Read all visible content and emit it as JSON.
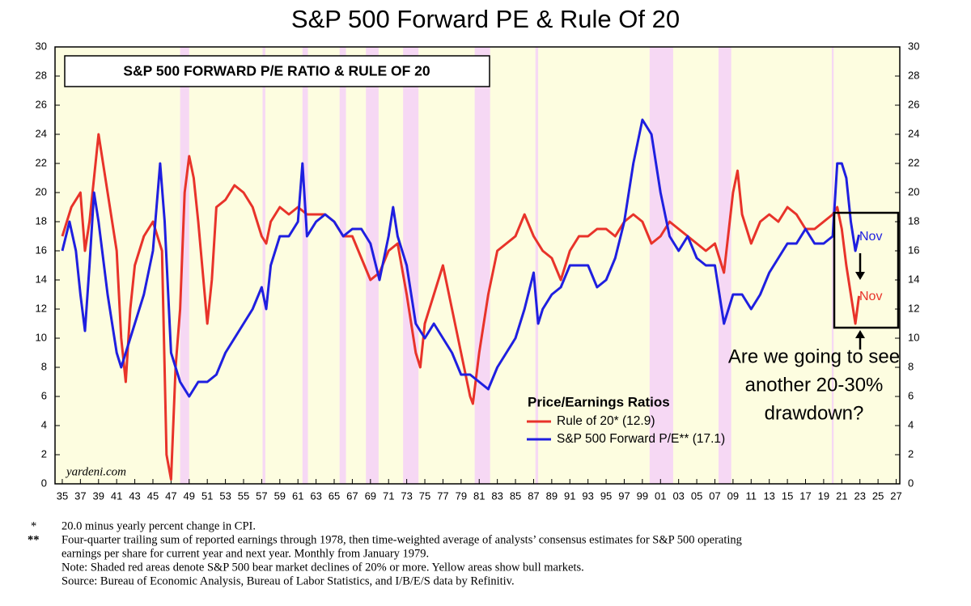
{
  "chart_data": {
    "type": "line",
    "title": "S&P 500 Forward PE & Rule Of 20",
    "subtitle": "S&P 500 FORWARD P/E RATIO & RULE OF 20",
    "legend_title": "Price/Earnings Ratios",
    "source_label": "yardeni.com",
    "annotations": [
      "Nov",
      "Nov",
      "Are we going to see",
      "another 20-30%",
      "drawdown?"
    ],
    "footnotes": [
      "*",
      "20.0 minus yearly percent change in CPI.",
      "**",
      "Four-quarter trailing sum of reported earnings through 1978, then time-weighted average of analysts’ consensus estimates for S&P 500 operating",
      "earnings per share for current year and next year. Monthly from January 1979.",
      "Note: Shaded red areas denote S&P 500 bear market declines of 20% or more. Yellow areas show bull markets.",
      "Source: Bureau of Economic Analysis, Bureau of Labor Statistics, and I/B/E/S data by Refinitiv."
    ],
    "background_color": "#fdfde0",
    "bear_market_color": "#f6d8f4",
    "bear_markets": [
      [
        1948.0,
        1949.0
      ],
      [
        1957.1,
        1957.4
      ],
      [
        1961.5,
        1962.1
      ],
      [
        1965.6,
        1966.3
      ],
      [
        1968.5,
        1969.9
      ],
      [
        1972.6,
        1974.3
      ],
      [
        1980.5,
        1982.2
      ],
      [
        1987.2,
        1987.5
      ],
      [
        1999.8,
        2002.4
      ],
      [
        2007.4,
        2008.8
      ],
      [
        2019.9,
        2020.1
      ]
    ],
    "xlim": [
      1934.2,
      2027.4
    ],
    "ylim": [
      0,
      30
    ],
    "yticks": [
      0,
      2,
      4,
      6,
      8,
      10,
      12,
      14,
      16,
      18,
      20,
      22,
      24,
      26,
      28,
      30
    ],
    "xticks": [
      {
        "value": 1935,
        "label": "35"
      },
      {
        "value": 1937,
        "label": "37"
      },
      {
        "value": 1939,
        "label": "39"
      },
      {
        "value": 1941,
        "label": "41"
      },
      {
        "value": 1943,
        "label": "43"
      },
      {
        "value": 1945,
        "label": "45"
      },
      {
        "value": 1947,
        "label": "47"
      },
      {
        "value": 1949,
        "label": "49"
      },
      {
        "value": 1951,
        "label": "51"
      },
      {
        "value": 1953,
        "label": "53"
      },
      {
        "value": 1955,
        "label": "55"
      },
      {
        "value": 1957,
        "label": "57"
      },
      {
        "value": 1959,
        "label": "59"
      },
      {
        "value": 1961,
        "label": "61"
      },
      {
        "value": 1963,
        "label": "63"
      },
      {
        "value": 1965,
        "label": "65"
      },
      {
        "value": 1967,
        "label": "67"
      },
      {
        "value": 1969,
        "label": "69"
      },
      {
        "value": 1971,
        "label": "71"
      },
      {
        "value": 1973,
        "label": "73"
      },
      {
        "value": 1975,
        "label": "75"
      },
      {
        "value": 1977,
        "label": "77"
      },
      {
        "value": 1979,
        "label": "79"
      },
      {
        "value": 1981,
        "label": "81"
      },
      {
        "value": 1983,
        "label": "83"
      },
      {
        "value": 1985,
        "label": "85"
      },
      {
        "value": 1987,
        "label": "87"
      },
      {
        "value": 1989,
        "label": "89"
      },
      {
        "value": 1991,
        "label": "91"
      },
      {
        "value": 1993,
        "label": "93"
      },
      {
        "value": 1995,
        "label": "95"
      },
      {
        "value": 1997,
        "label": "97"
      },
      {
        "value": 1999,
        "label": "99"
      },
      {
        "value": 2001,
        "label": "01"
      },
      {
        "value": 2003,
        "label": "03"
      },
      {
        "value": 2005,
        "label": "05"
      },
      {
        "value": 2007,
        "label": "07"
      },
      {
        "value": 2009,
        "label": "09"
      },
      {
        "value": 2011,
        "label": "11"
      },
      {
        "value": 2013,
        "label": "13"
      },
      {
        "value": 2015,
        "label": "15"
      },
      {
        "value": 2017,
        "label": "17"
      },
      {
        "value": 2019,
        "label": "19"
      },
      {
        "value": 2021,
        "label": "21"
      },
      {
        "value": 2023,
        "label": "23"
      },
      {
        "value": 2025,
        "label": "25"
      },
      {
        "value": 2027,
        "label": "27"
      }
    ],
    "series": [
      {
        "name": "Rule of 20* (12.9)",
        "color": "#e8332a",
        "x": [
          1935,
          1936,
          1937,
          1937.5,
          1938,
          1939,
          1939.5,
          1940,
          1941,
          1941.5,
          1942,
          1942.5,
          1943,
          1944,
          1945,
          1946,
          1946.5,
          1947,
          1947.5,
          1948,
          1948.5,
          1949,
          1949.5,
          1950,
          1951,
          1951.5,
          1952,
          1953,
          1954,
          1955,
          1956,
          1957,
          1957.5,
          1958,
          1959,
          1960,
          1961,
          1962,
          1963,
          1964,
          1965,
          1966,
          1967,
          1968,
          1969,
          1970,
          1971,
          1972,
          1973,
          1974,
          1974.5,
          1975,
          1976,
          1977,
          1978,
          1979,
          1980,
          1980.3,
          1981,
          1982,
          1983,
          1984,
          1985,
          1986,
          1987,
          1988,
          1989,
          1990,
          1991,
          1992,
          1993,
          1994,
          1995,
          1996,
          1997,
          1998,
          1999,
          2000,
          2001,
          2002,
          2003,
          2004,
          2005,
          2006,
          2007,
          2008,
          2009,
          2009.5,
          2010,
          2011,
          2012,
          2013,
          2014,
          2015,
          2016,
          2017,
          2018,
          2019,
          2020,
          2020.5,
          2021,
          2021.5,
          2022,
          2022.5,
          2022.9
        ],
        "values": [
          17,
          19,
          20,
          16,
          18,
          24,
          22,
          20,
          16,
          10,
          7,
          12,
          15,
          17,
          18,
          16,
          2,
          0.3,
          8,
          12,
          20,
          22.5,
          21,
          18,
          11,
          14,
          19,
          19.5,
          20.5,
          20,
          19,
          17,
          16.5,
          18,
          19,
          18.5,
          19,
          18.5,
          18.5,
          18.5,
          18,
          17,
          17,
          15.5,
          14,
          14.5,
          16,
          16.5,
          13,
          9,
          8,
          11,
          13,
          15,
          12,
          9,
          6,
          5.5,
          9,
          13,
          16,
          16.5,
          17,
          18.5,
          17,
          16,
          15.5,
          14,
          16,
          17,
          17,
          17.5,
          17.5,
          17,
          18,
          18.5,
          18,
          16.5,
          17,
          18,
          17.5,
          17,
          16.5,
          16,
          16.5,
          14.5,
          20,
          21.5,
          18.5,
          16.5,
          18,
          18.5,
          18,
          19,
          18.5,
          17.5,
          17.5,
          18,
          18.5,
          19,
          17.5,
          15,
          13,
          11,
          12.9
        ]
      },
      {
        "name": "S&P 500 Forward P/E** (17.1)",
        "color": "#1f1fe0",
        "x": [
          1935,
          1935.8,
          1936.5,
          1937,
          1937.5,
          1938,
          1938.5,
          1939,
          1940,
          1941,
          1941.5,
          1942,
          1943,
          1944,
          1945,
          1945.8,
          1946.3,
          1947,
          1948,
          1949,
          1950,
          1951,
          1952,
          1953,
          1954,
          1955,
          1956,
          1957,
          1957.5,
          1958,
          1959,
          1960,
          1961,
          1961.5,
          1962,
          1963,
          1964,
          1965,
          1966,
          1967,
          1968,
          1969,
          1970,
          1971,
          1971.5,
          1972,
          1973,
          1974,
          1975,
          1976,
          1977,
          1978,
          1979,
          1980,
          1981,
          1982,
          1983,
          1984,
          1985,
          1986,
          1987,
          1987.5,
          1988,
          1989,
          1990,
          1991,
          1992,
          1993,
          1994,
          1995,
          1996,
          1997,
          1998,
          1999,
          2000,
          2001,
          2002,
          2003,
          2004,
          2005,
          2006,
          2007,
          2008,
          2009,
          2010,
          2011,
          2012,
          2013,
          2014,
          2015,
          2016,
          2017,
          2018,
          2019,
          2020,
          2020.5,
          2021,
          2021.5,
          2022,
          2022.5,
          2022.9
        ],
        "values": [
          16,
          18,
          16,
          13,
          10.5,
          15,
          20,
          18,
          13,
          9,
          8,
          9,
          11,
          13,
          16,
          22,
          18,
          9,
          7,
          6,
          7,
          7,
          7.5,
          9,
          10,
          11,
          12,
          13.5,
          12,
          15,
          17,
          17,
          18,
          22,
          17,
          18,
          18.5,
          18,
          17,
          17.5,
          17.5,
          16.5,
          14,
          17,
          19,
          17,
          15,
          11,
          10,
          11,
          10,
          9,
          7.5,
          7.5,
          7,
          6.5,
          8,
          9,
          10,
          12,
          14.5,
          11,
          12,
          13,
          13.5,
          15,
          15,
          15,
          13.5,
          14,
          15.5,
          18,
          22,
          25,
          24,
          20,
          17,
          16,
          17,
          15.5,
          15,
          15,
          11,
          13,
          13,
          12,
          13,
          14.5,
          15.5,
          16.5,
          16.5,
          17.5,
          16.5,
          16.5,
          17,
          22,
          22,
          21,
          18,
          16,
          17.1
        ]
      }
    ]
  }
}
